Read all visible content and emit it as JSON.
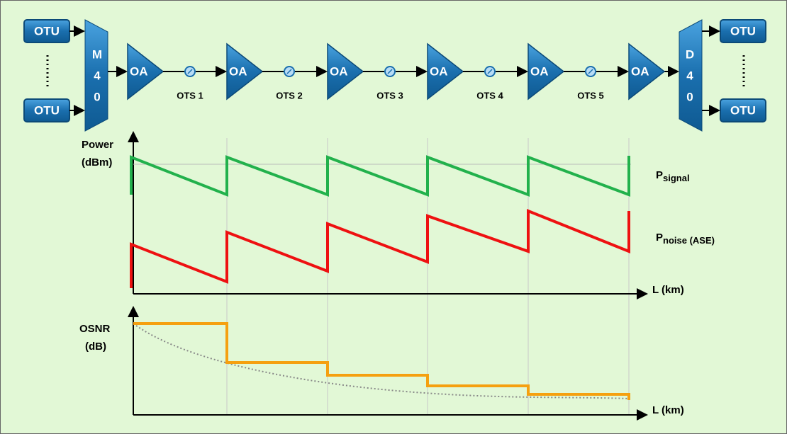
{
  "otu_left": [
    "OTU",
    "OTU"
  ],
  "mux_letters": [
    "M",
    "4",
    "0"
  ],
  "amplifiers": [
    "OA",
    "OA",
    "OA",
    "OA",
    "OA",
    "OA"
  ],
  "spans": [
    "OTS 1",
    "OTS 2",
    "OTS 3",
    "OTS 4",
    "OTS 5"
  ],
  "demux_letters": [
    "D",
    "4",
    "0"
  ],
  "otu_right": [
    "OTU",
    "OTU"
  ],
  "power_chart": {
    "y_label": [
      "Power",
      "(dBm)"
    ],
    "x_label": "L (km)",
    "signal_label": {
      "main": "P",
      "sub": "signal"
    },
    "noise_label": {
      "main": "P",
      "sub": "noise (ASE)"
    }
  },
  "osnr_chart": {
    "y_label": [
      "OSNR",
      "(dB)"
    ],
    "x_label": "L (km)"
  }
}
